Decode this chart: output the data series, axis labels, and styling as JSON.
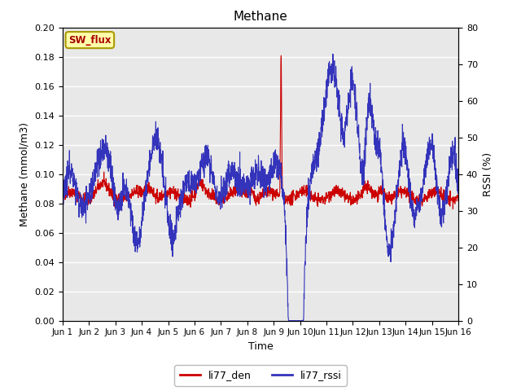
{
  "title": "Methane",
  "ylabel_left": "Methane (mmol/m3)",
  "ylabel_right": "RSSI (%)",
  "xlabel": "Time",
  "ylim_left": [
    0.0,
    0.2
  ],
  "ylim_right": [
    0,
    80
  ],
  "yticks_left": [
    0.0,
    0.02,
    0.04,
    0.06,
    0.08,
    0.1,
    0.12,
    0.14,
    0.16,
    0.18,
    0.2
  ],
  "yticks_right": [
    0,
    10,
    20,
    30,
    40,
    50,
    60,
    70,
    80
  ],
  "color_den": "#cc0000",
  "color_rssi": "#3333bb",
  "legend_labels": [
    "li77_den",
    "li77_rssi"
  ],
  "sw_flux_label": "SW_flux",
  "bg_color": "#e8e8e8",
  "x_tick_labels": [
    "Jun 1",
    "Jun 2",
    "Jun 3",
    "Jun 4",
    "Jun 5",
    "Jun 6",
    "Jun 7",
    "Jun 8",
    "Jun 9",
    "Jun 10",
    "Jun 11",
    "Jun 12",
    "Jun 13",
    "Jun 14",
    "Jun 15",
    "Jun 16"
  ],
  "n_points": 2000
}
